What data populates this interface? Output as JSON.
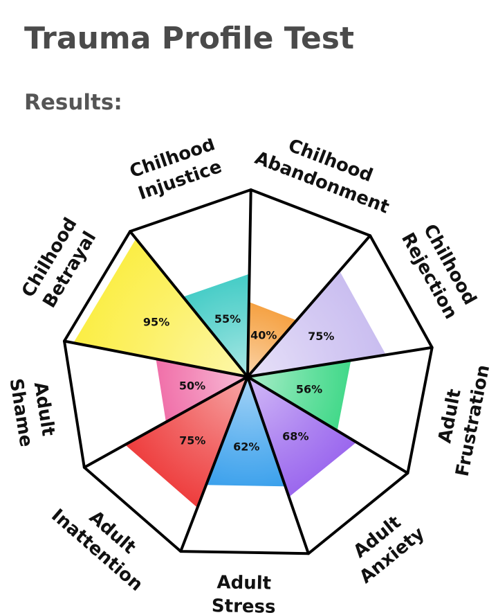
{
  "page": {
    "title": "Trauma Profile Test",
    "results_heading": "Results:"
  },
  "chart_data": {
    "type": "polar-area",
    "title": "",
    "max_value": 100,
    "categories": [
      "Chilhood Abandonment",
      "Chilhood Rejection",
      "Adult Frustration",
      "Adult Anxiety",
      "Adult Stress",
      "Adult Inattention",
      "Adult Shame",
      "Chilhood Betrayal",
      "Chilhood Injustice"
    ],
    "label_lines": [
      [
        "Chilhood",
        "Abandonment"
      ],
      [
        "Chilhood",
        "Rejection"
      ],
      [
        "Adult",
        "Frustration"
      ],
      [
        "Adult",
        "Anxiety"
      ],
      [
        "Adult",
        "Stress"
      ],
      [
        "Adult",
        "Inattention"
      ],
      [
        "Adult",
        "Shame"
      ],
      [
        "Chilhood",
        "Betrayal"
      ],
      [
        "Chilhood",
        "Injustice"
      ]
    ],
    "values": [
      40,
      75,
      56,
      68,
      62,
      75,
      50,
      95,
      55
    ],
    "value_labels": [
      "40%",
      "75%",
      "56%",
      "68%",
      "62%",
      "75%",
      "50%",
      "95%",
      "55%"
    ],
    "colors": [
      "#f5a040",
      "#c9bdf0",
      "#40d888",
      "#9a66ee",
      "#3aa0ec",
      "#ee3c3c",
      "#f06ea8",
      "#fbee44",
      "#44ccc6"
    ]
  }
}
